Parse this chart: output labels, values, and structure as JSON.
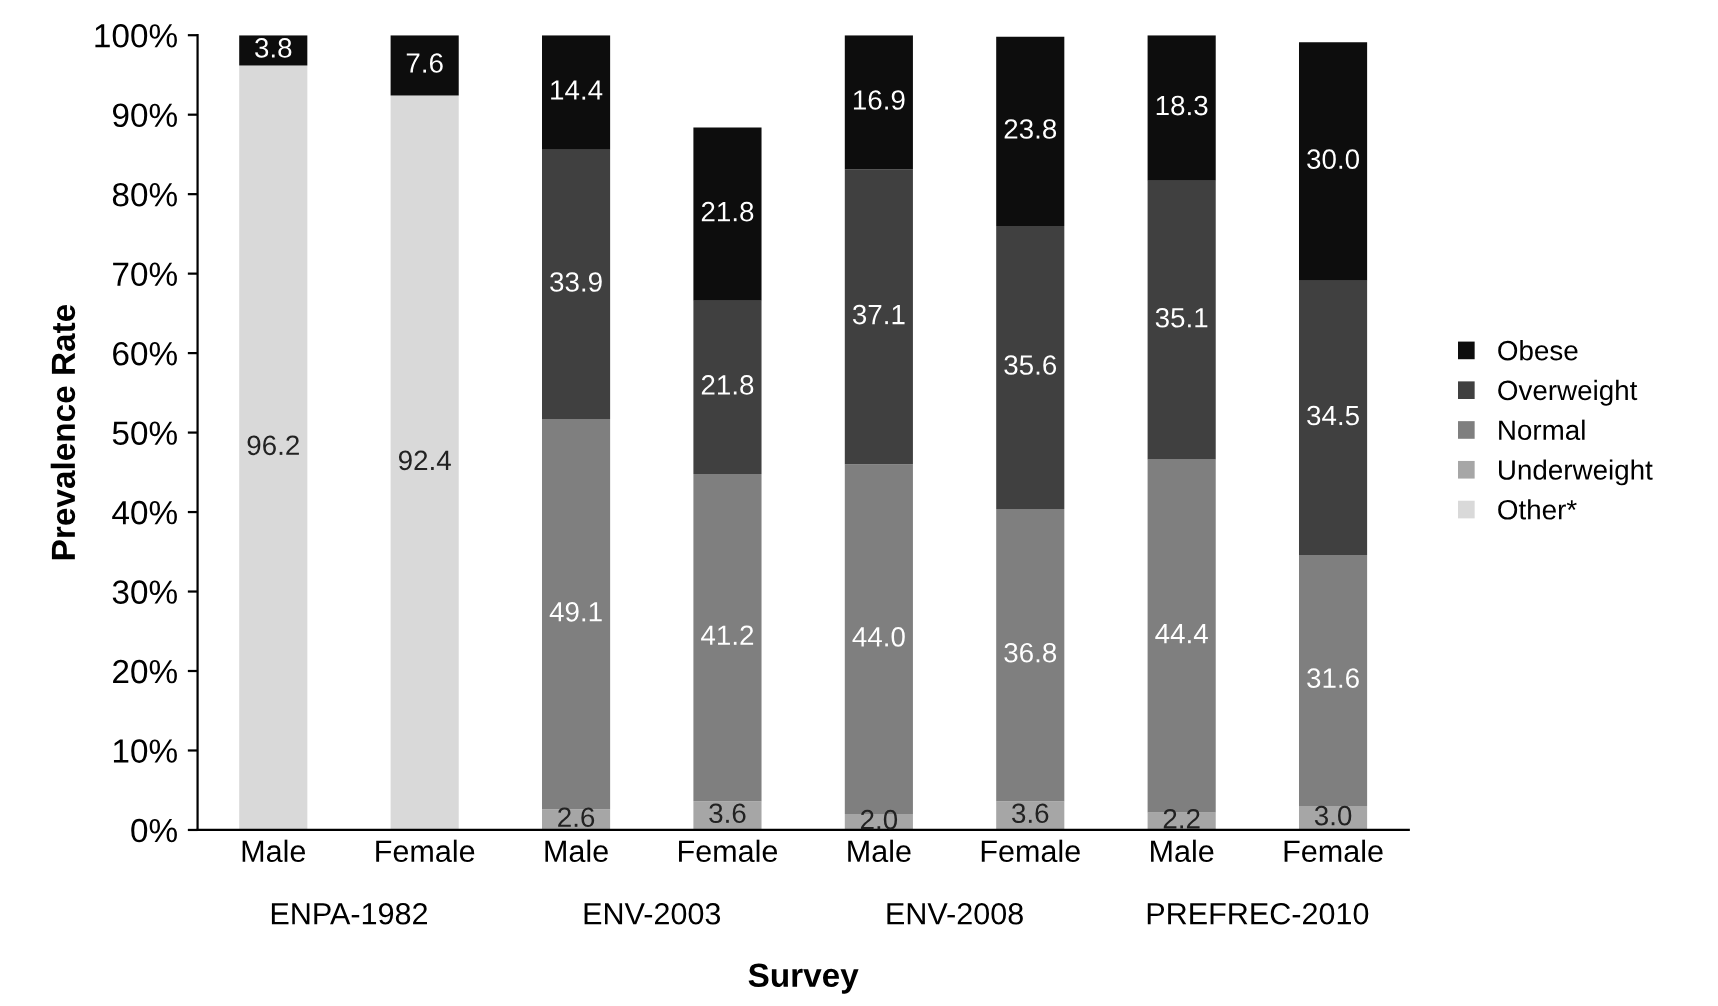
{
  "chart_data": {
    "type": "bar",
    "stacked": true,
    "ylabel": "Prevalence Rate",
    "xlabel": "Survey",
    "categories": [
      "Male",
      "Female",
      "Male",
      "Female",
      "Male",
      "Female",
      "Male",
      "Female"
    ],
    "annotations": [
      "ENPA-1982",
      "ENV-2003",
      "ENV-2008",
      "PREFREC-2010"
    ],
    "series": [
      {
        "name": "Other*",
        "color": "#d9d9d9",
        "values": [
          96.2,
          92.4,
          null,
          null,
          null,
          null,
          null,
          null
        ],
        "value_labels": [
          "96.2",
          "92.4",
          null,
          null,
          null,
          null,
          null,
          null
        ]
      },
      {
        "name": "Underweight",
        "color": "#a6a6a6",
        "values": [
          null,
          null,
          2.6,
          3.6,
          2.0,
          3.6,
          2.2,
          3.0
        ],
        "value_labels": [
          null,
          null,
          "2.6",
          "3.6",
          "2.0",
          "3.6",
          "2.2",
          "3.0"
        ]
      },
      {
        "name": "Normal",
        "color": "#7f7f7f",
        "values": [
          null,
          null,
          49.1,
          41.2,
          44.0,
          36.8,
          44.4,
          31.6
        ],
        "value_labels": [
          null,
          null,
          "49.1",
          "41.2",
          "44.0",
          "36.8",
          "44.4",
          "31.6"
        ]
      },
      {
        "name": "Overweight",
        "color": "#404040",
        "values": [
          null,
          null,
          33.9,
          21.8,
          37.1,
          35.6,
          35.1,
          34.5
        ],
        "value_labels": [
          null,
          null,
          "33.9",
          "21.8",
          "37.1",
          "35.6",
          "35.1",
          "34.5"
        ]
      },
      {
        "name": "Obese",
        "color": "#0d0d0d",
        "values": [
          3.8,
          7.6,
          14.4,
          21.8,
          16.9,
          23.8,
          18.3,
          30.0
        ],
        "value_labels": [
          "3.8",
          "7.6",
          "14.4",
          "21.8",
          "16.9",
          "23.8",
          "18.3",
          "30.0"
        ]
      }
    ],
    "legend": "right",
    "grid": false,
    "ylim": [
      0,
      100
    ],
    "yticks": [
      {
        "value": 0,
        "label": "0%"
      },
      {
        "value": 10,
        "label": "10%"
      },
      {
        "value": 20,
        "label": "20%"
      },
      {
        "value": 30,
        "label": "30%"
      },
      {
        "value": 40,
        "label": "40%"
      },
      {
        "value": 50,
        "label": "50%"
      },
      {
        "value": 60,
        "label": "60%"
      },
      {
        "value": 70,
        "label": "70%"
      },
      {
        "value": 80,
        "label": "80%"
      },
      {
        "value": 90,
        "label": "90%"
      },
      {
        "value": 100,
        "label": "100%"
      }
    ]
  }
}
